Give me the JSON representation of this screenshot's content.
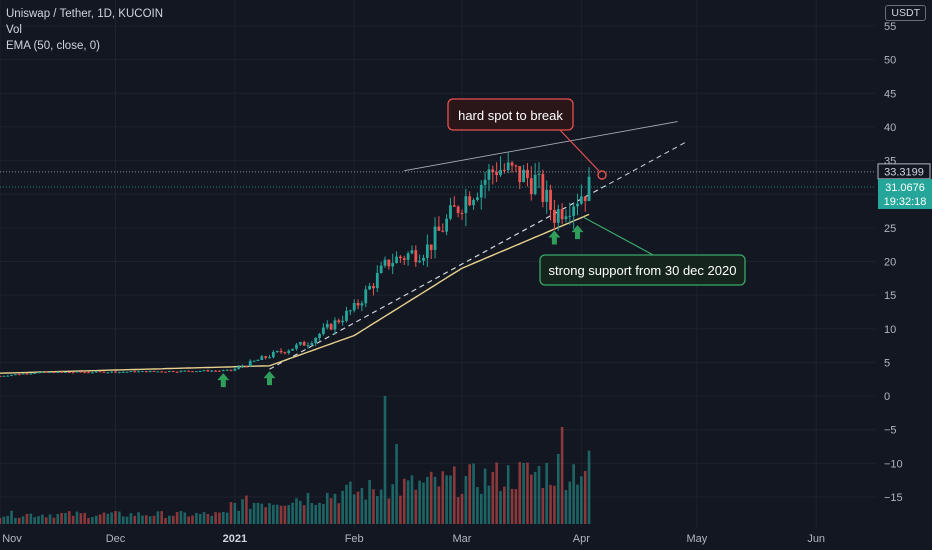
{
  "header": {
    "symbol_line": "Uniswap / Tether, 1D, KUCOIN",
    "volume_label": "Vol",
    "ema_label": "EMA (50, close, 0)",
    "currency": "USDT"
  },
  "chart_data": {
    "type": "candlestick",
    "price_axis_ticks": [
      55,
      50,
      45,
      40,
      35,
      30,
      25,
      20,
      15,
      10,
      5,
      0,
      -5,
      -10,
      -15
    ],
    "price_axis_labels": [
      "55",
      "50",
      "45",
      "40",
      "35",
      "30",
      "25",
      "20",
      "15",
      "10",
      "5",
      "0",
      "−5",
      "−10",
      "−15"
    ],
    "time_axis_labels": [
      "Nov",
      "Dec",
      "2021",
      "Feb",
      "Mar",
      "Apr",
      "May",
      "Jun"
    ],
    "time_axis_bold": [
      "2021"
    ],
    "ylim": [
      -18,
      57
    ],
    "price_samples": [
      {
        "date": "2020-11-01",
        "close": 3.0
      },
      {
        "date": "2020-11-10",
        "close": 3.5
      },
      {
        "date": "2020-12-01",
        "close": 3.6
      },
      {
        "date": "2020-12-31",
        "close": 3.8
      },
      {
        "date": "2021-01-10",
        "close": 6.0
      },
      {
        "date": "2021-01-20",
        "close": 8.0
      },
      {
        "date": "2021-02-01",
        "close": 13.0
      },
      {
        "date": "2021-02-10",
        "close": 20.0
      },
      {
        "date": "2021-02-20",
        "close": 22.0
      },
      {
        "date": "2021-03-01",
        "close": 29.0
      },
      {
        "date": "2021-03-10",
        "close": 34.0
      },
      {
        "date": "2021-03-20",
        "close": 32.0
      },
      {
        "date": "2021-03-25",
        "close": 27.0
      },
      {
        "date": "2021-04-03",
        "close": 31.0
      }
    ],
    "ema_samples": [
      {
        "date": "2020-11-01",
        "value": 3.4
      },
      {
        "date": "2021-01-10",
        "value": 4.5
      },
      {
        "date": "2021-02-01",
        "value": 9.0
      },
      {
        "date": "2021-03-01",
        "value": 19.0
      },
      {
        "date": "2021-04-03",
        "value": 27.0
      }
    ],
    "horizontal_line": {
      "price": 33.3199,
      "label": "33.3199"
    },
    "current_price": {
      "price": 31.0676,
      "label": "31.0676",
      "countdown": "19:32:18"
    },
    "annotations": [
      {
        "text": "hard spot to break",
        "border": "#e85050"
      },
      {
        "text": "strong support from 30 dec 2020",
        "border": "#3aa768"
      }
    ],
    "support_arrows": 4,
    "colors": {
      "up": "#26a69a",
      "down": "#ef5350",
      "ema": "#e7d18d",
      "background": "#131722",
      "grid": "#1e222d",
      "axis_text": "#b2b5be",
      "arrow": "#2f9e5a"
    }
  }
}
